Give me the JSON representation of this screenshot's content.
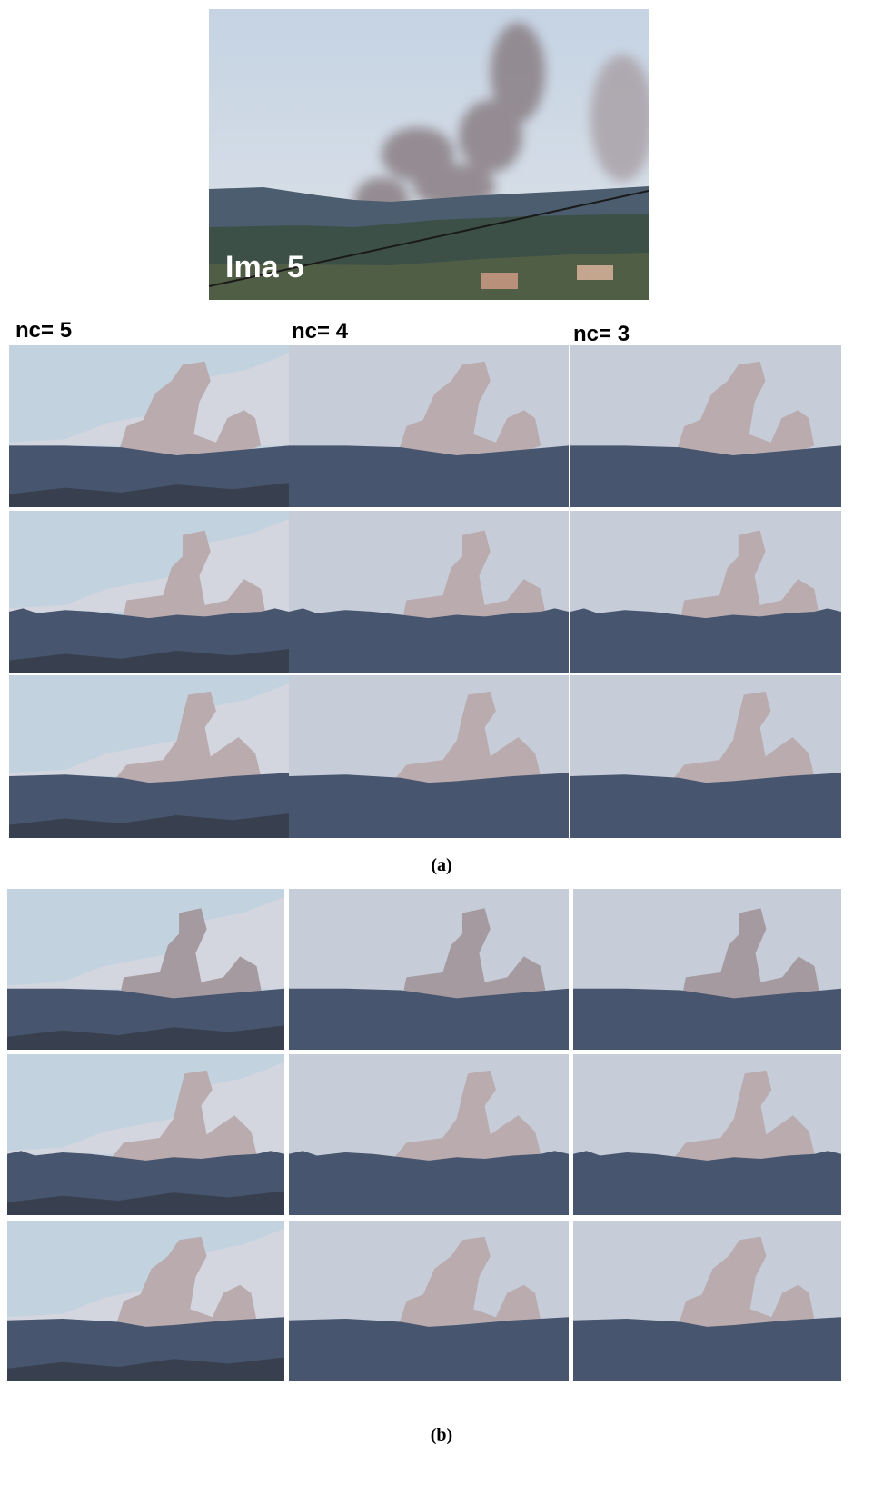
{
  "figure": {
    "image_label": "Ima 5",
    "column_labels": [
      "nc= 5",
      "nc= 4",
      "nc= 3"
    ],
    "subfigure_labels": [
      "(a)",
      "(b)"
    ]
  }
}
